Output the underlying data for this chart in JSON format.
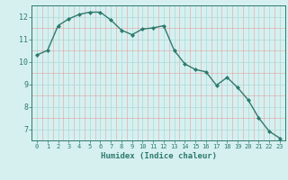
{
  "x": [
    0,
    1,
    2,
    3,
    4,
    5,
    6,
    7,
    8,
    9,
    10,
    11,
    12,
    13,
    14,
    15,
    16,
    17,
    18,
    19,
    20,
    21,
    22,
    23
  ],
  "y": [
    10.3,
    10.5,
    11.6,
    11.9,
    12.1,
    12.2,
    12.2,
    11.85,
    11.4,
    11.2,
    11.45,
    11.5,
    11.6,
    10.5,
    9.9,
    9.65,
    9.55,
    8.95,
    9.3,
    8.85,
    8.3,
    7.5,
    6.9,
    6.6
  ],
  "line_color": "#2d7a6e",
  "marker": "D",
  "markersize": 2.0,
  "linewidth": 1.0,
  "bg_color": "#d6f0f0",
  "grid_color_major": "#add8d8",
  "grid_color_minor": "#e88080",
  "xlabel": "Humidex (Indice chaleur)",
  "xlabel_color": "#2d7a6e",
  "tick_color": "#2d7a6e",
  "ylim": [
    6.5,
    12.5
  ],
  "xlim": [
    -0.5,
    23.5
  ],
  "yticks": [
    7,
    8,
    9,
    10,
    11,
    12
  ],
  "xticks": [
    0,
    1,
    2,
    3,
    4,
    5,
    6,
    7,
    8,
    9,
    10,
    11,
    12,
    13,
    14,
    15,
    16,
    17,
    18,
    19,
    20,
    21,
    22,
    23
  ]
}
